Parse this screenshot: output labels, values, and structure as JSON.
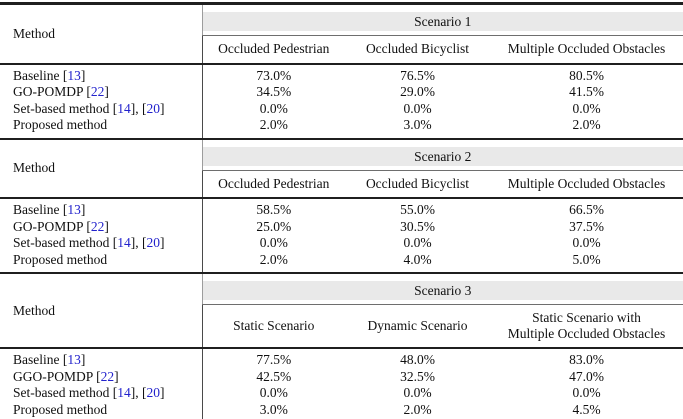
{
  "colors": {
    "citation": "#2222cc",
    "band_bg": "#e9e9e9",
    "rule_dark": "#1f1f1f"
  },
  "table": {
    "method_header": "Method",
    "sections": [
      {
        "scenario": "Scenario 1",
        "columns": [
          "Occluded Pedestrian",
          "Occluded Bicyclist",
          "Multiple Occluded Obstacles"
        ],
        "rows": [
          {
            "method": "Baseline",
            "refs": [
              "13"
            ],
            "values": [
              "73.0%",
              "76.5%",
              "80.5%"
            ]
          },
          {
            "method": "GO-POMDP",
            "refs": [
              "22"
            ],
            "values": [
              "34.5%",
              "29.0%",
              "41.5%"
            ]
          },
          {
            "method": "Set-based method",
            "refs": [
              "14",
              "20"
            ],
            "values": [
              "0.0%",
              "0.0%",
              "0.0%"
            ]
          },
          {
            "method": "Proposed method",
            "refs": [],
            "values": [
              "2.0%",
              "3.0%",
              "2.0%"
            ]
          }
        ]
      },
      {
        "scenario": "Scenario 2",
        "columns": [
          "Occluded Pedestrian",
          "Occluded Bicyclist",
          "Multiple Occluded Obstacles"
        ],
        "rows": [
          {
            "method": "Baseline",
            "refs": [
              "13"
            ],
            "values": [
              "58.5%",
              "55.0%",
              "66.5%"
            ]
          },
          {
            "method": "GO-POMDP",
            "refs": [
              "22"
            ],
            "values": [
              "25.0%",
              "30.5%",
              "37.5%"
            ]
          },
          {
            "method": "Set-based method",
            "refs": [
              "14",
              "20"
            ],
            "values": [
              "0.0%",
              "0.0%",
              "0.0%"
            ]
          },
          {
            "method": "Proposed method",
            "refs": [],
            "values": [
              "2.0%",
              "4.0%",
              "5.0%"
            ]
          }
        ]
      },
      {
        "scenario": "Scenario 3",
        "columns": [
          "Static Scenario",
          "Dynamic Scenario",
          "Static Scenario with\nMultiple Occluded Obstacles"
        ],
        "rows": [
          {
            "method": "Baseline",
            "refs": [
              "13"
            ],
            "values": [
              "77.5%",
              "48.0%",
              "83.0%"
            ]
          },
          {
            "method": "GGO-POMDP",
            "refs": [
              "22"
            ],
            "values": [
              "42.5%",
              "32.5%",
              "47.0%"
            ]
          },
          {
            "method": "Set-based method",
            "refs": [
              "14",
              "20"
            ],
            "values": [
              "0.0%",
              "0.0%",
              "0.0%"
            ]
          },
          {
            "method": "Proposed method",
            "refs": [],
            "values": [
              "3.0%",
              "2.0%",
              "4.5%"
            ]
          }
        ]
      }
    ]
  }
}
